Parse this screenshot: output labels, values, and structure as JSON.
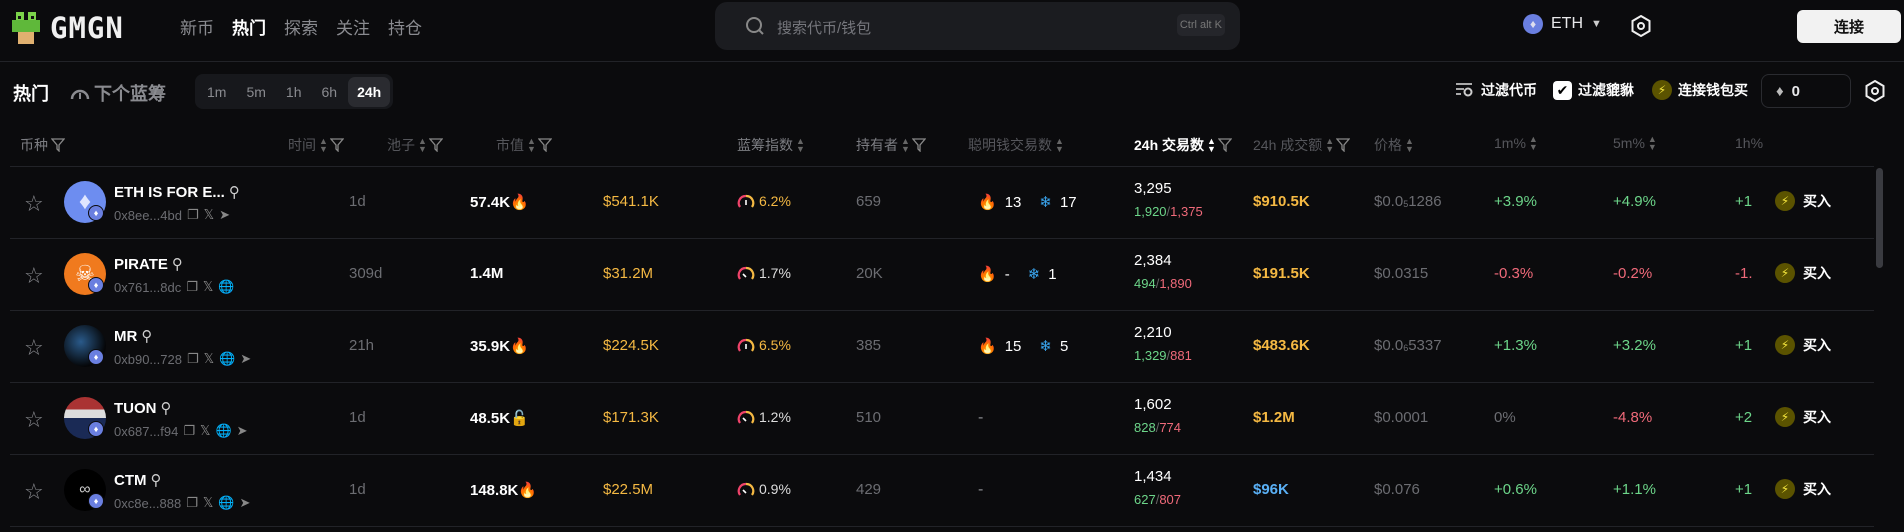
{
  "header": {
    "logo": "GMGN",
    "nav": [
      "新币",
      "热门",
      "探索",
      "关注",
      "持仓"
    ],
    "nav_active": 1,
    "search": {
      "placeholder": "搜索代币/钱包",
      "shortcut": "Ctrl alt K"
    },
    "chain": "ETH",
    "connect_label": "连接"
  },
  "toolbar": {
    "title": "热门",
    "next_bluechip": "下个蓝筹",
    "periods": [
      "1m",
      "5m",
      "1h",
      "6h",
      "24h"
    ],
    "active_period": "24h",
    "filter_tokens": "过滤代币",
    "filter_pixiu": "过滤貔貅",
    "filter_pixiu_checked": true,
    "connect_wallet_buy": "连接钱包买",
    "buy_amount": "0"
  },
  "columns": {
    "token": "币种",
    "age": "时间",
    "pool": "池子",
    "mcap": "市值",
    "bluechip": "蓝筹指数",
    "holders": "持有者",
    "smart": "聪明钱交易数",
    "tx24": "24h 交易数",
    "vol24": "24h 成交额",
    "price": "价格",
    "m1": "1m%",
    "m5": "5m%",
    "h1": "1h%"
  },
  "sorted_column": "24h 交易数",
  "colors": {
    "accent_yellow": "#f5b943",
    "green": "#6dd68a",
    "red": "#f06a7a",
    "blue": "#5ab0f5",
    "background": "#0b0b0d"
  },
  "rows": [
    {
      "name": "ETH IS FOR E...",
      "addr": "0x8ee...4bd",
      "links": [
        "copy",
        "x",
        "telegram"
      ],
      "age": "1d",
      "pool": "57.4K",
      "pool_icon": "fire",
      "mcap": "$541.1K",
      "bluechip": "6.2%",
      "bluechip_hi": true,
      "holders": "659",
      "smart_buy": "13",
      "smart_sell": "17",
      "tx": "3,295",
      "buys": "1,920",
      "sells": "1,375",
      "vol": "$910.5K",
      "price_pre": "$0.0",
      "price_sub": "5",
      "price_post": "1286",
      "m1": "+3.9%",
      "m5": "+4.9%",
      "h1": "+1",
      "avatar": "eth"
    },
    {
      "name": "PIRATE",
      "addr": "0x761...8dc",
      "links": [
        "copy",
        "x",
        "web"
      ],
      "age": "309d",
      "pool": "1.4M",
      "pool_icon": "",
      "mcap": "$31.2M",
      "bluechip": "1.7%",
      "bluechip_hi": false,
      "holders": "20K",
      "smart_buy": "-",
      "smart_sell": "1",
      "tx": "2,384",
      "buys": "494",
      "sells": "1,890",
      "vol": "$191.5K",
      "price_pre": "$0.0315",
      "price_sub": "",
      "price_post": "",
      "m1": "-0.3%",
      "m5": "-0.2%",
      "h1": "-1.",
      "avatar": "pirate"
    },
    {
      "name": "MR",
      "addr": "0xb90...728",
      "links": [
        "copy",
        "x",
        "web",
        "telegram"
      ],
      "age": "21h",
      "pool": "35.9K",
      "pool_icon": "fire",
      "mcap": "$224.5K",
      "bluechip": "6.5%",
      "bluechip_hi": true,
      "holders": "385",
      "smart_buy": "15",
      "smart_sell": "5",
      "tx": "2,210",
      "buys": "1,329",
      "sells": "881",
      "vol": "$483.6K",
      "price_pre": "$0.0",
      "price_sub": "6",
      "price_post": "5337",
      "m1": "+1.3%",
      "m5": "+3.2%",
      "h1": "+1",
      "avatar": "mr"
    },
    {
      "name": "TUON",
      "addr": "0x687...f94",
      "links": [
        "copy",
        "x",
        "web",
        "telegram"
      ],
      "age": "1d",
      "pool": "48.5K",
      "pool_icon": "lock",
      "mcap": "$171.3K",
      "bluechip": "1.2%",
      "bluechip_hi": false,
      "holders": "510",
      "smart_buy": "",
      "smart_sell": "",
      "smart_none": "-",
      "tx": "1,602",
      "buys": "828",
      "sells": "774",
      "vol": "$1.2M",
      "price_pre": "$0.0001",
      "price_sub": "",
      "price_post": "",
      "m1": "0%",
      "m5": "-4.8%",
      "h1": "+2",
      "avatar": "tuon"
    },
    {
      "name": "CTM",
      "addr": "0xc8e...888",
      "links": [
        "copy",
        "x",
        "web",
        "telegram"
      ],
      "age": "1d",
      "pool": "148.8K",
      "pool_icon": "fire",
      "mcap": "$22.5M",
      "bluechip": "0.9%",
      "bluechip_hi": false,
      "holders": "429",
      "smart_buy": "",
      "smart_sell": "",
      "smart_none": "-",
      "tx": "1,434",
      "buys": "627",
      "sells": "807",
      "vol": "$96K",
      "vol_blue": true,
      "price_pre": "$0.076",
      "price_sub": "",
      "price_post": "",
      "m1": "+0.6%",
      "m5": "+1.1%",
      "h1": "+1",
      "avatar": "ctm"
    }
  ],
  "buy_label": "买入"
}
